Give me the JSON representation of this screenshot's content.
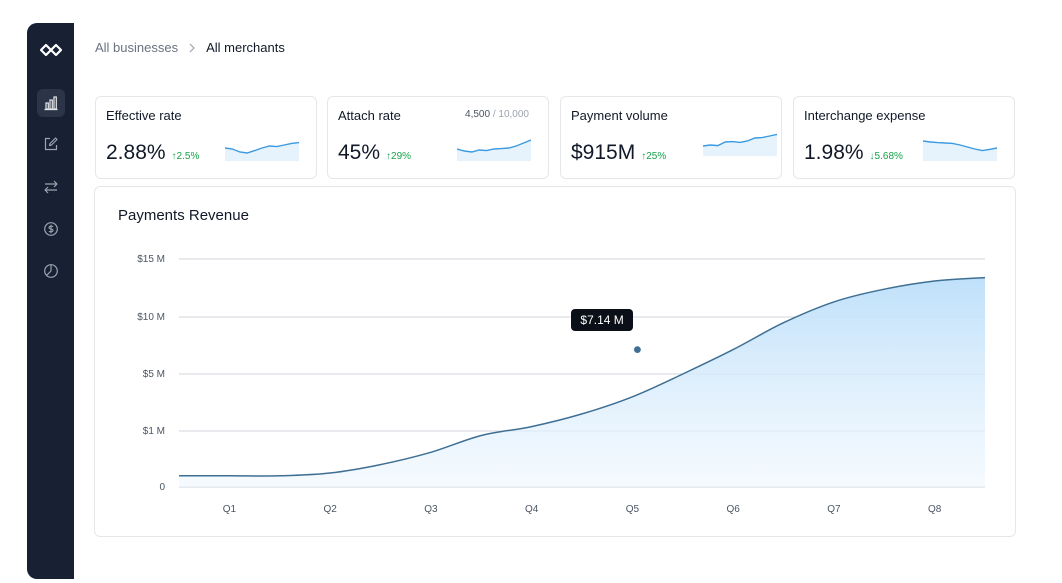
{
  "sidebar": {
    "logo": "infinity-logo-icon",
    "items": [
      {
        "icon": "bar-chart-icon",
        "active": true
      },
      {
        "icon": "edit-icon",
        "active": false
      },
      {
        "icon": "transfer-arrows-icon",
        "active": false
      },
      {
        "icon": "dollar-circle-icon",
        "active": false
      },
      {
        "icon": "pie-chart-icon",
        "active": false
      }
    ],
    "bg_color": "#172133"
  },
  "breadcrumb": {
    "items": [
      "All businesses",
      "All merchants"
    ]
  },
  "kpis": [
    {
      "title": "Effective rate",
      "value": "2.88%",
      "delta": "2.5%",
      "direction": "up",
      "spark": [
        0.55,
        0.5,
        0.35,
        0.3,
        0.42,
        0.55,
        0.65,
        0.62,
        0.7,
        0.78,
        0.82
      ]
    },
    {
      "title": "Attach rate",
      "value": "45%",
      "delta": "29%",
      "direction": "up",
      "extra_num": "4,500",
      "extra_den": "/ 10,000",
      "spark": [
        0.5,
        0.4,
        0.35,
        0.45,
        0.42,
        0.5,
        0.52,
        0.55,
        0.65,
        0.8,
        0.95
      ]
    },
    {
      "title": "Payment volume",
      "value": "$915M",
      "delta": "25%",
      "direction": "up",
      "spark": [
        0.4,
        0.45,
        0.42,
        0.6,
        0.62,
        0.58,
        0.65,
        0.8,
        0.82,
        0.9,
        0.98
      ]
    },
    {
      "title": "Interchange expense",
      "value": "1.98%",
      "delta": "5.68%",
      "direction": "down",
      "spark": [
        0.9,
        0.85,
        0.82,
        0.8,
        0.78,
        0.7,
        0.6,
        0.5,
        0.42,
        0.48,
        0.55
      ]
    }
  ],
  "colors": {
    "accent": "#3b9ae1",
    "line": "#3f6f93",
    "area_top": "#bfe0fa",
    "delta_green": "#16a34a"
  },
  "chart_data": {
    "type": "area",
    "title": "Payments Revenue",
    "categories": [
      "Q1",
      "Q2",
      "Q3",
      "Q4",
      "Q5",
      "Q6",
      "Q7",
      "Q8"
    ],
    "y_ticks": [
      {
        "label": "$15 M",
        "value": 15
      },
      {
        "label": "$10 M",
        "value": 10
      },
      {
        "label": "$5 M",
        "value": 5
      },
      {
        "label": "$1 M",
        "value": 1
      },
      {
        "label": "0",
        "value": 0
      }
    ],
    "x": [
      0,
      0.5,
      1,
      1.5,
      2,
      2.5,
      3,
      3.5,
      4,
      4.5,
      5,
      5.5,
      6,
      6.5,
      7,
      7.5,
      8
    ],
    "values": [
      0.2,
      0.2,
      0.2,
      0.25,
      0.4,
      0.62,
      0.92,
      1.31,
      2.2,
      3.4,
      5.0,
      7.14,
      9.5,
      11.3,
      12.4,
      13.1,
      13.4
    ],
    "ylim": [
      0,
      15
    ],
    "grid": true,
    "tooltip": {
      "label": "$7.14 M",
      "x_value": 4.55,
      "value": 7.14
    }
  }
}
